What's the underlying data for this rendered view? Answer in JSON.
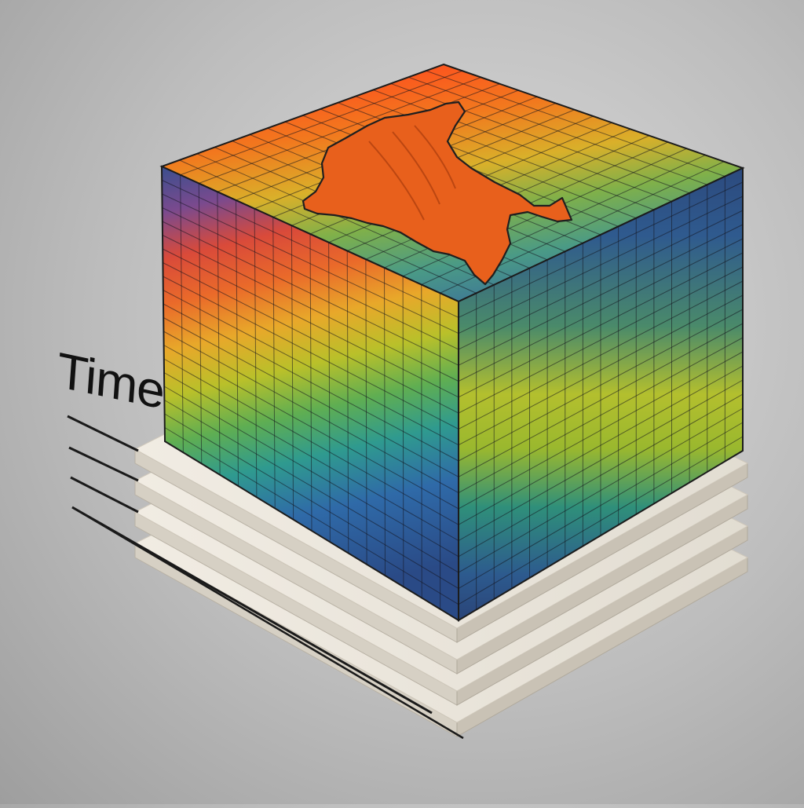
{
  "diagram": {
    "time_label": "Time",
    "layer_count": 4,
    "colors": {
      "slab": "#ebe6dc",
      "slab_side": "#d6d0c4",
      "axis_line": "#1a1a1a",
      "cube_outline": "#1c1c1c",
      "map_fill": "#e8601c",
      "map_outline": "#1f1f1f",
      "top_gradient": [
        "#ff4a1e",
        "#f28a1e",
        "#e6b81e",
        "#7fb04a",
        "#4a9a86",
        "#3b6f9a"
      ],
      "side_bands": [
        "#33508e",
        "#6a4a9a",
        "#d94a3a",
        "#e89a2a",
        "#c9c62a",
        "#6fb24a",
        "#2fa08a",
        "#2f6aa8",
        "#283f78"
      ]
    },
    "region_icon": "country-map-outline"
  }
}
